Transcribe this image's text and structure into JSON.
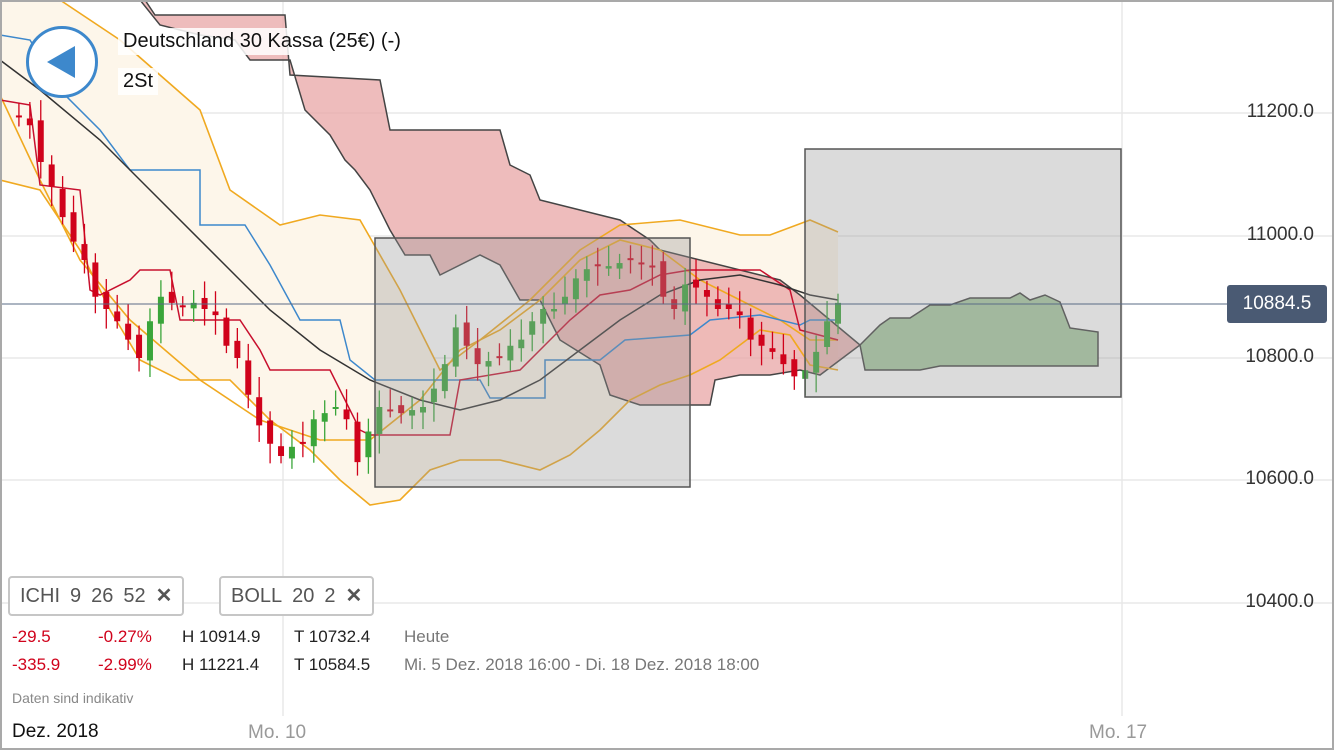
{
  "header": {
    "title": "Deutschland 30 Kassa (25€) (-)",
    "period": "2St"
  },
  "axis": {
    "labels": [
      "11200.0",
      "11000.0",
      "10800.0",
      "10600.0",
      "10400.0"
    ],
    "current_price": "10884.5"
  },
  "indicators": [
    {
      "name": "ICHI",
      "params": [
        "9",
        "26",
        "52"
      ],
      "remove": "✕"
    },
    {
      "name": "BOLL",
      "params": [
        "20",
        "2"
      ],
      "remove": "✕"
    }
  ],
  "stats": [
    {
      "change": "-29.5",
      "pct": "-0.27%",
      "high": "H 10914.9",
      "low": "T 10732.4",
      "range": "Heute"
    },
    {
      "change": "-335.9",
      "pct": "-2.99%",
      "high": "H 11221.4",
      "low": "T 10584.5",
      "range": "Mi. 5 Dez. 2018 16:00 - Di. 18 Dez. 2018 18:00"
    }
  ],
  "note": "Daten sind indikativ",
  "xaxis": {
    "month": "Dez. 2018",
    "labels": [
      "Mo. 10",
      "Mo. 17"
    ]
  },
  "colors": {
    "up": "#3aa53a",
    "down": "#d0021b",
    "accent": "#3d88cc",
    "price_tag": "#4a5a73"
  },
  "chart_data": {
    "type": "candlestick",
    "ylim": [
      10350,
      11380
    ],
    "current": 10884.5,
    "closes": [
      11200,
      11195,
      11180,
      11120,
      11080,
      11030,
      10990,
      10960,
      10900,
      10880,
      10860,
      10830,
      10800,
      10860,
      10900,
      10890,
      10885,
      10890,
      10880,
      10870,
      10820,
      10800,
      10740,
      10690,
      10660,
      10640,
      10655,
      10660,
      10700,
      10710,
      10720,
      10700,
      10630,
      10680,
      10720,
      10715,
      10710,
      10715,
      10720,
      10750,
      10790,
      10850,
      10820,
      10790,
      10795,
      10800,
      10820,
      10830,
      10860,
      10880,
      10880,
      10900,
      10930,
      10945,
      10950,
      10950,
      10955,
      10960,
      10955,
      10950,
      10900,
      10880,
      10920,
      10915,
      10900,
      10880,
      10880,
      10870,
      10830,
      10820,
      10810,
      10790,
      10770,
      10780,
      10810,
      10860,
      10890
    ]
  }
}
